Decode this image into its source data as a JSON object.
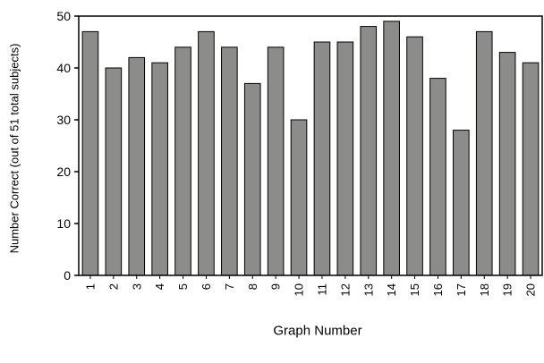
{
  "chart_data": {
    "type": "bar",
    "title": "",
    "xlabel": "Graph Number",
    "ylabel": "Number Correct (out of 51 total subjects)",
    "categories": [
      "1",
      "2",
      "3",
      "4",
      "5",
      "6",
      "7",
      "8",
      "9",
      "10",
      "11",
      "12",
      "13",
      "14",
      "15",
      "16",
      "17",
      "18",
      "19",
      "20"
    ],
    "values": [
      47,
      40,
      42,
      41,
      44,
      47,
      44,
      37,
      44,
      30,
      45,
      45,
      48,
      49,
      46,
      38,
      28,
      47,
      43,
      41
    ],
    "ylim": [
      0,
      50
    ],
    "yticks": [
      0,
      10,
      20,
      30,
      40,
      50
    ],
    "x_tick_rotation": "vertical",
    "grid": false,
    "legend": "none",
    "colors": {
      "bar_fill": "#8c8c8a",
      "bar_stroke": "#000000",
      "axis": "#000000",
      "background": "#ffffff"
    }
  }
}
